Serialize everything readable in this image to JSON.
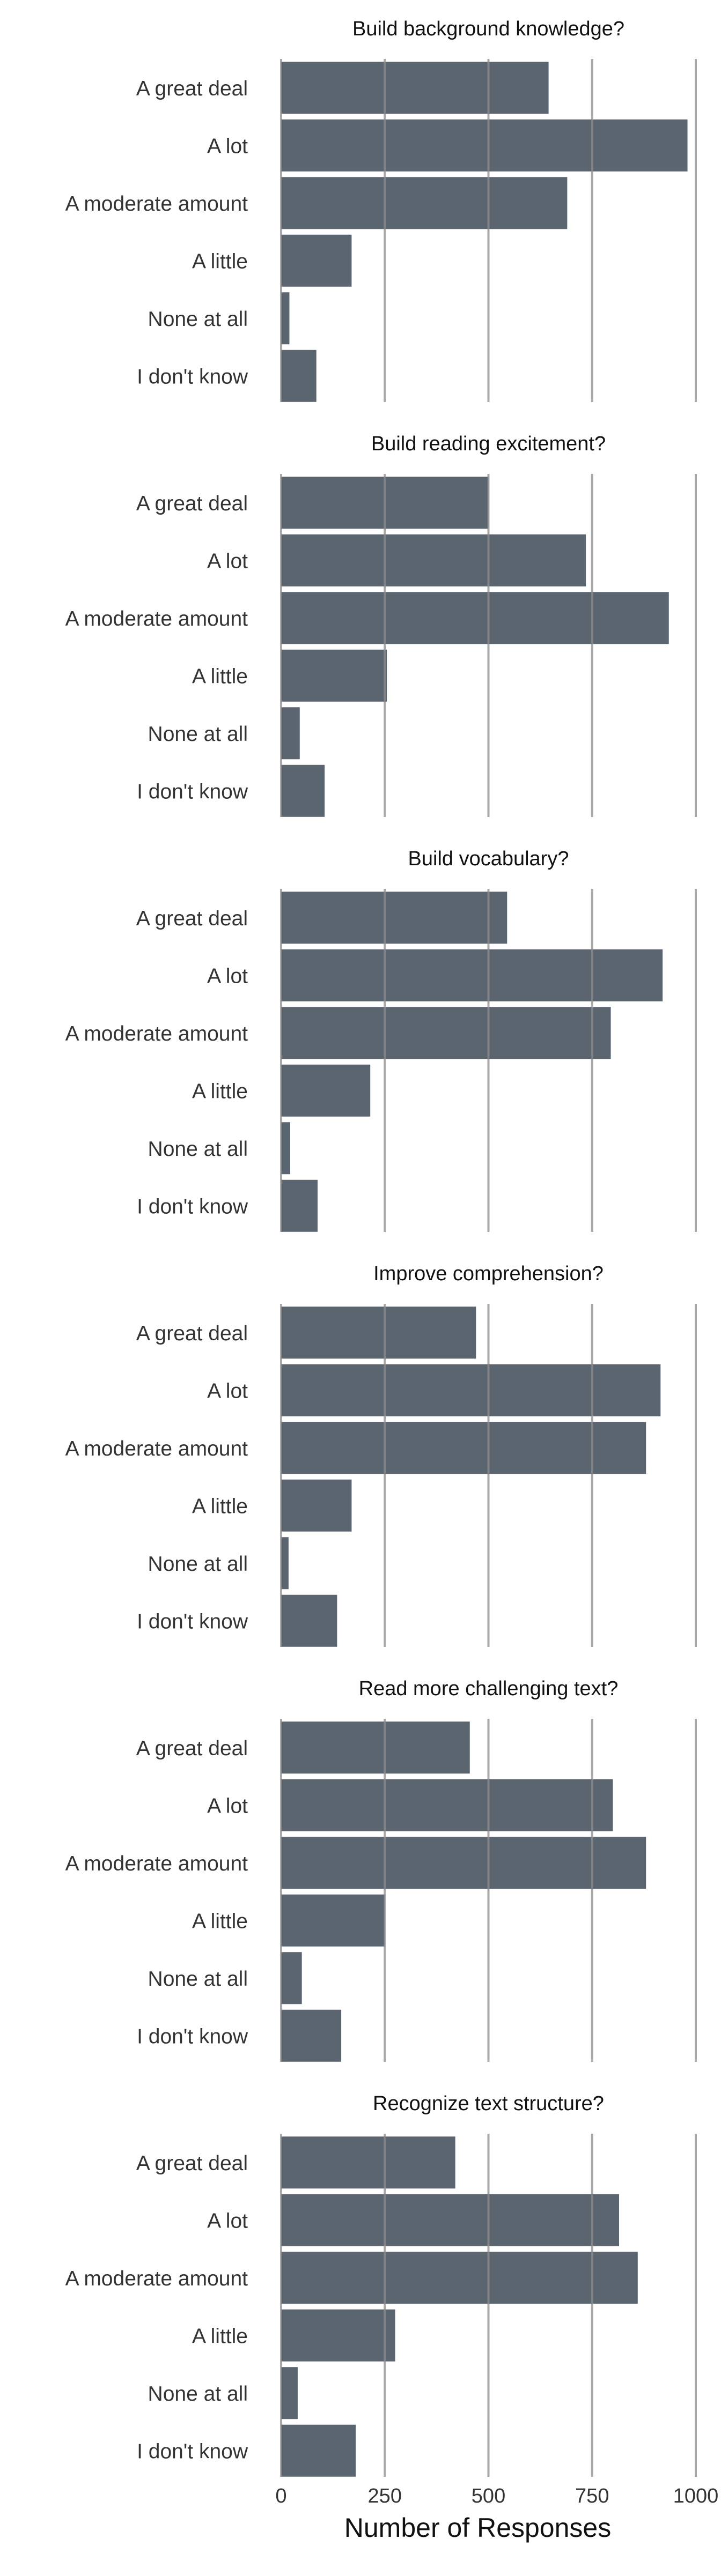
{
  "chart_data": {
    "type": "bar",
    "orientation": "horizontal",
    "faceted": true,
    "categories": [
      "A great deal",
      "A lot",
      "A moderate amount",
      "A little",
      "None at all",
      "I don't know"
    ],
    "xlabel": "Number of Responses",
    "xlim": [
      0,
      1000
    ],
    "xticks": [
      0,
      250,
      500,
      750,
      1000
    ],
    "xtick_labels": [
      "0",
      "250",
      "500",
      "750",
      "1000"
    ],
    "grid": "vertical lines at ticks",
    "colors": {
      "bar": "#5b6570",
      "grid": "#8c8c8c",
      "text": "#333333"
    },
    "panels": [
      {
        "title": "Build background knowledge?",
        "values": [
          645,
          980,
          690,
          170,
          20,
          85
        ]
      },
      {
        "title": "Build reading excitement?",
        "values": [
          500,
          735,
          935,
          255,
          45,
          105
        ]
      },
      {
        "title": "Build vocabulary?",
        "values": [
          545,
          920,
          795,
          215,
          22,
          88
        ]
      },
      {
        "title": "Improve comprehension?",
        "values": [
          470,
          915,
          880,
          170,
          18,
          135
        ]
      },
      {
        "title": "Read more challenging text?",
        "values": [
          455,
          800,
          880,
          250,
          50,
          145
        ]
      },
      {
        "title": "Recognize text structure?",
        "values": [
          420,
          815,
          860,
          275,
          40,
          180
        ]
      }
    ]
  }
}
